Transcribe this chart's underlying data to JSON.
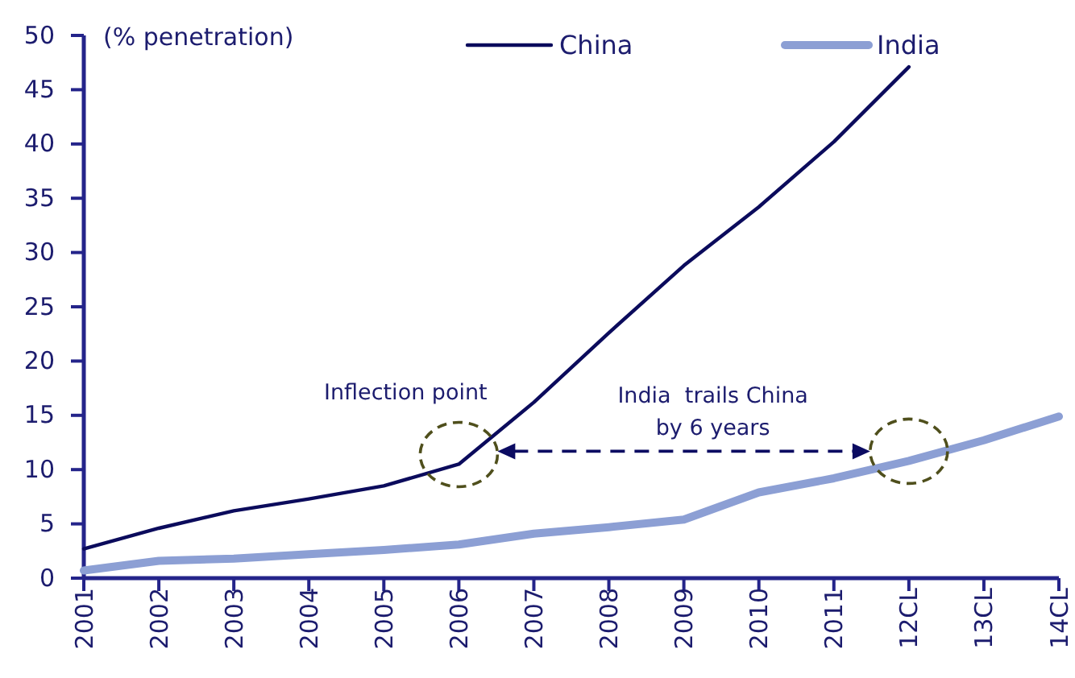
{
  "chart_data": {
    "type": "line",
    "ylabel": "(% penetration)",
    "categories": [
      "2001",
      "2002",
      "2003",
      "2004",
      "2005",
      "2006",
      "2007",
      "2008",
      "2009",
      "2010",
      "2011",
      "12CL",
      "13CL",
      "14CL"
    ],
    "series": [
      {
        "name": "China",
        "color": "#0b0b5c",
        "values": [
          2.7,
          4.6,
          6.2,
          7.3,
          8.5,
          10.5,
          16.2,
          22.6,
          28.8,
          34.2,
          40.2,
          47.1,
          null,
          null
        ]
      },
      {
        "name": "India",
        "color": "#8c9fd4",
        "values": [
          0.7,
          1.6,
          1.8,
          2.2,
          2.6,
          3.1,
          4.1,
          4.7,
          5.4,
          7.9,
          9.2,
          10.8,
          12.7,
          14.9
        ]
      }
    ],
    "ylim": [
      0,
      50
    ],
    "yticks": [
      0,
      5,
      10,
      15,
      20,
      25,
      30,
      35,
      40,
      45,
      50
    ],
    "legend": "top right",
    "annotations": [
      {
        "text": "Inflection point",
        "x": "2006",
        "y": 10.5
      },
      "India  trails China\nby 6 years"
    ]
  }
}
